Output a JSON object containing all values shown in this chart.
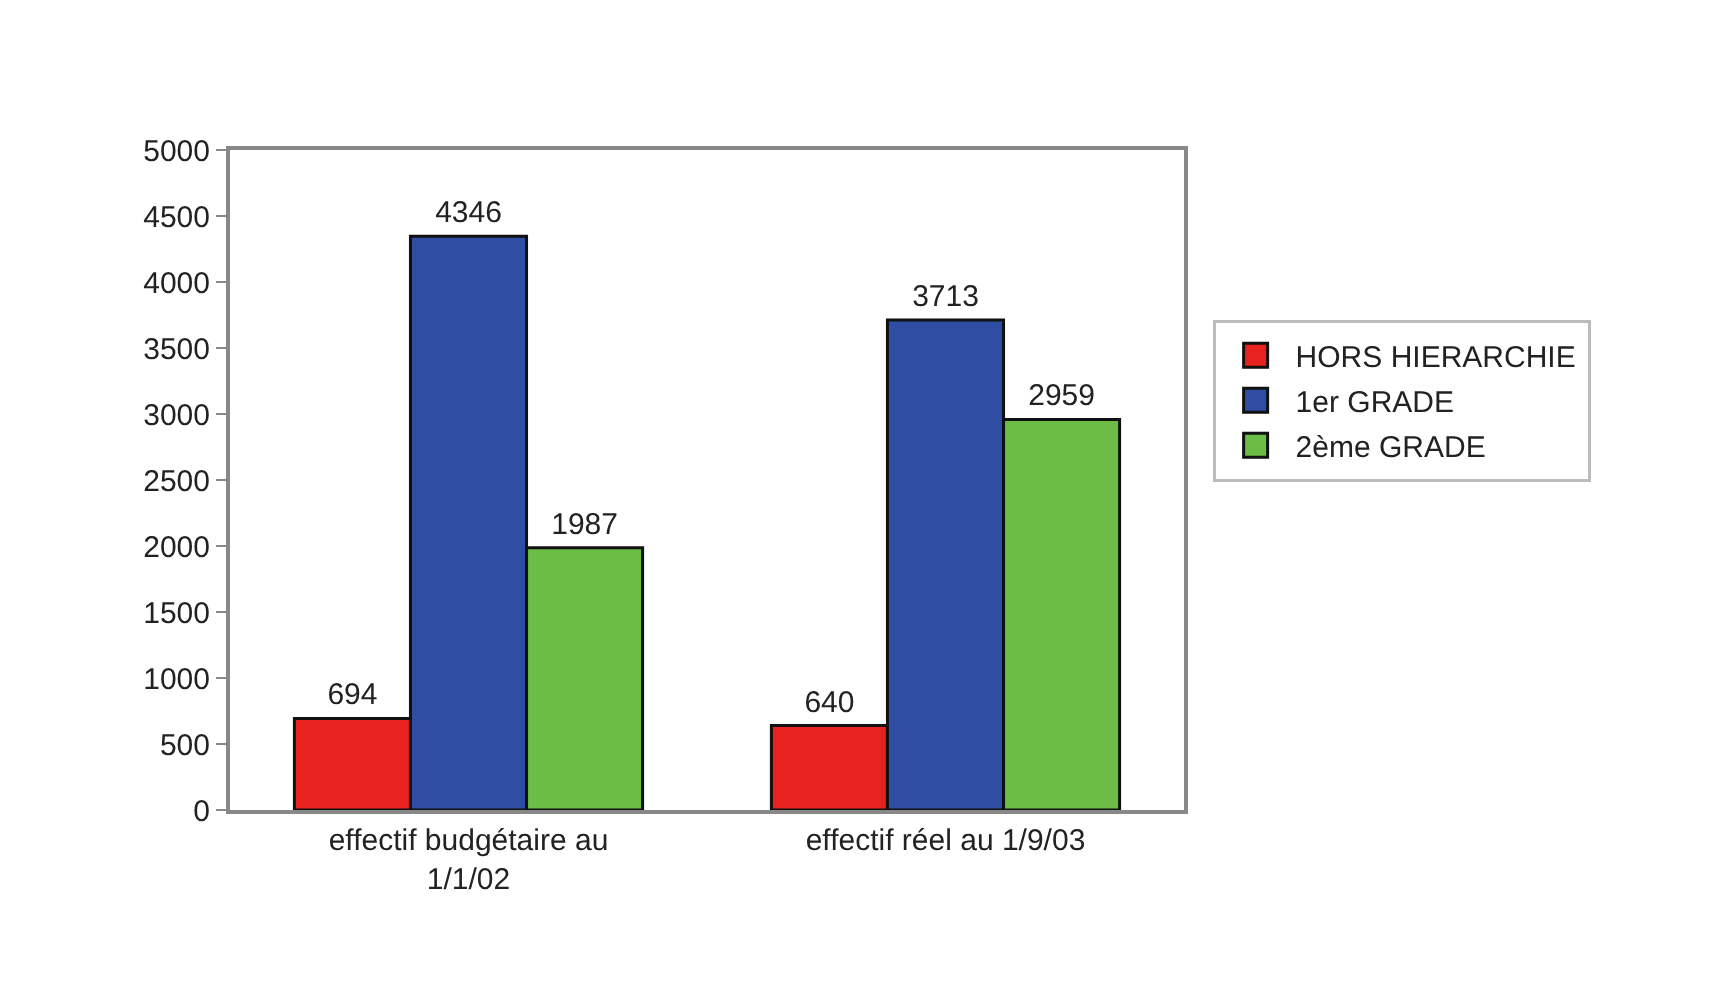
{
  "chart_data": {
    "type": "bar",
    "categories": [
      "effectif budgétaire au 1/1/02",
      "effectif réel au 1/9/03"
    ],
    "series": [
      {
        "name": "HORS HIERARCHIE",
        "color": "#e8221f",
        "values": [
          694,
          640
        ]
      },
      {
        "name": "1er GRADE",
        "color": "#2f4ea3",
        "values": [
          4346,
          3713
        ]
      },
      {
        "name": "2ème GRADE",
        "color": "#6bbd45",
        "values": [
          1987,
          2959
        ]
      }
    ],
    "ylim": [
      0,
      5000
    ],
    "yticks": [
      0,
      500,
      1000,
      1500,
      2000,
      2500,
      3000,
      3500,
      4000,
      4500,
      5000
    ],
    "data_labels": true,
    "legend": "right"
  }
}
